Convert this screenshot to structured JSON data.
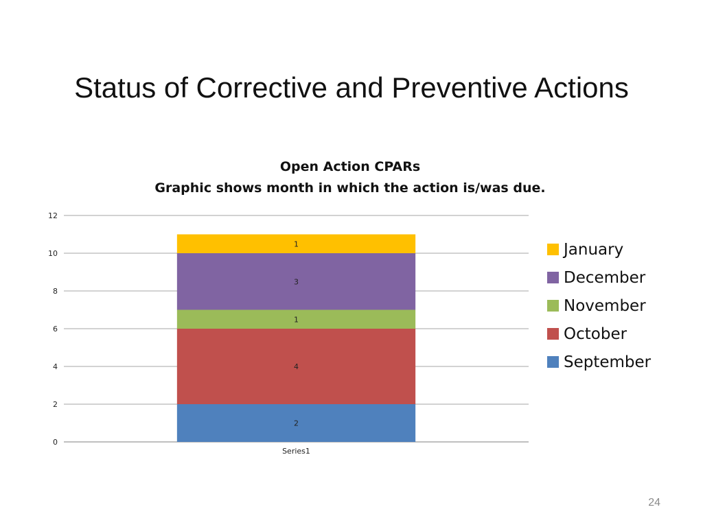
{
  "slide": {
    "title": "Status of Corrective and Preventive Actions",
    "page_number": "24"
  },
  "chart_data": {
    "type": "bar",
    "stacked": true,
    "title": "Open Action CPARs",
    "subtitle": "Graphic shows month in which the action is/was due.",
    "categories": [
      "Series1"
    ],
    "series": [
      {
        "name": "September",
        "values": [
          2
        ],
        "color": "#4f81bd"
      },
      {
        "name": "October",
        "values": [
          4
        ],
        "color": "#c0504d"
      },
      {
        "name": "November",
        "values": [
          1
        ],
        "color": "#9bbb59"
      },
      {
        "name": "December",
        "values": [
          3
        ],
        "color": "#8064a2"
      },
      {
        "name": "January",
        "values": [
          1
        ],
        "color": "#ffc000"
      }
    ],
    "ylim": [
      0,
      12
    ],
    "yticks": [
      0,
      2,
      4,
      6,
      8,
      10,
      12
    ],
    "grid": true,
    "legend": "right",
    "data_labels": true
  }
}
